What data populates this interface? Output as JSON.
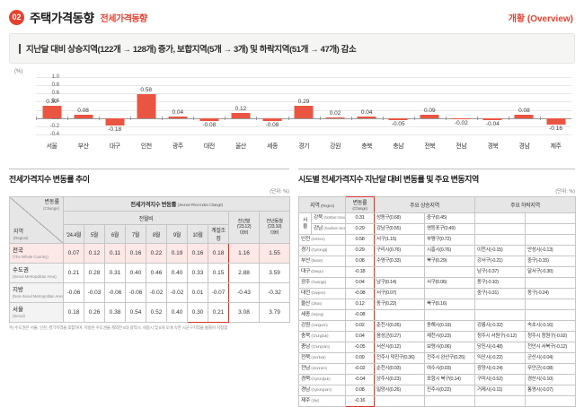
{
  "colors": {
    "accent_red": "#e8402f",
    "bar": "#ea5541",
    "highlight_row": "#fce8e6",
    "red_box": "#d0382b",
    "header_bg": "#e6e6e6"
  },
  "header": {
    "badge": "02",
    "title": "주택가격동향",
    "subtitle": "전세가격동향",
    "right_label": "개황 (Overview)"
  },
  "summary": {
    "text": "지난달 대비 상승지역(122개 → 128개) 증가, 보합지역(5개 → 3개) 및 하락지역(51개 → 47개) 감소"
  },
  "chart_data": {
    "type": "bar",
    "unit_label": "(%)",
    "categories": [
      "서울",
      "부산",
      "대구",
      "인천",
      "광주",
      "대전",
      "울산",
      "세종",
      "경기",
      "강원",
      "충북",
      "충남",
      "전북",
      "전남",
      "경북",
      "경남",
      "제주"
    ],
    "values": [
      0.3,
      0.08,
      -0.18,
      0.58,
      0.04,
      -0.08,
      0.12,
      -0.08,
      0.29,
      0.02,
      0.04,
      -0.05,
      0.09,
      -0.02,
      -0.04,
      0.08,
      -0.16
    ],
    "ylim": [
      -0.4,
      1.0
    ],
    "ytick_step": 0.2,
    "grid": true,
    "legend": "none"
  },
  "left_table": {
    "title": "전세가격지수 변동률 추이",
    "unit": "(단위: %)",
    "corner": {
      "change_kr": "변동률",
      "change_en": "(Change)",
      "region_kr": "지역",
      "region_en": "(Region)"
    },
    "group_title_kr": "전세가격지수 변동률",
    "group_title_en": "(Jeonse Price Index Change)",
    "sub_group": "전월비",
    "months": [
      "'24.4월",
      "5월",
      "6월",
      "7월",
      "8월",
      "9월",
      "10월",
      "계절조정"
    ],
    "extra_cols": [
      "전년말\n('23.12)\n대비",
      "전년동월\n('23.10)\n대비"
    ],
    "rows": [
      {
        "kr": "전국",
        "en": "(The Whole Country)",
        "highlight": true,
        "values": [
          "0.07",
          "0.12",
          "0.11",
          "0.16",
          "0.22",
          "0.19",
          "0.16",
          "0.18",
          "1.16",
          "1.55"
        ]
      },
      {
        "kr": "수도권",
        "en": "(Seoul Metropolitan Area)",
        "highlight": false,
        "values": [
          "0.21",
          "0.28",
          "0.31",
          "0.40",
          "0.46",
          "0.40",
          "0.33",
          "0.15",
          "2.88",
          "3.59"
        ]
      },
      {
        "kr": "지방",
        "en": "(Non-Seoul Metropolitan Area)",
        "highlight": false,
        "values": [
          "-0.06",
          "-0.03",
          "-0.06",
          "-0.06",
          "-0.02",
          "-0.02",
          "0.01",
          "-0.07",
          "-0.43",
          "-0.32"
        ]
      },
      {
        "kr": "서울",
        "en": "(Seoul)",
        "highlight": false,
        "values": [
          "0.18",
          "0.26",
          "0.38",
          "0.54",
          "0.52",
          "0.40",
          "0.30",
          "0.21",
          "3.08",
          "3.79"
        ]
      }
    ],
    "footnote": "주) 수도권은 서울, 인천, 경기지역을 포함하며, 지방은 수도권을 제외한 5대 광역시, 세종시 및 8개 도에 속한 시군구지역을 통틀어 지칭함"
  },
  "right_table": {
    "title": "시도별 전세가격지수 지난달 대비 변동률 및 주요 변동지역",
    "unit": "(단위: %)",
    "headers": {
      "region": "지역",
      "region_en": "(Region)",
      "change": "변동률",
      "change_en": "(Change)",
      "up": "주요 상승지역",
      "down": "주요 하락지역"
    },
    "rows": [
      {
        "group": "서울",
        "group_span": 2,
        "kr": "강북",
        "en": "(Northern Seoul)",
        "change": "0.31",
        "up": [
          "성동구(0.68)",
          "중구(0.45)"
        ],
        "down": [
          "",
          ""
        ]
      },
      {
        "kr": "강남",
        "en": "(Southern Seoul)",
        "change": "0.29",
        "up": [
          "강남구(0.55)",
          "영등포구(0.49)"
        ],
        "down": [
          "",
          ""
        ]
      },
      {
        "kr": "인천",
        "en": "(Incheon)",
        "wide": true,
        "change": "0.58",
        "up": [
          "서구(1.15)",
          "부평구(0.72)"
        ],
        "down": [
          "",
          ""
        ]
      },
      {
        "kr": "경기",
        "en": "(Gyeonggi)",
        "wide": true,
        "change": "0.29",
        "up": [
          "구리시(0.76)",
          "시흥시(0.76)"
        ],
        "down": [
          "이천시(-0.15)",
          "안성시(-0.13)"
        ]
      },
      {
        "kr": "부산",
        "en": "(Busan)",
        "wide": true,
        "change": "0.08",
        "up": [
          "수영구(0.33)",
          "북구(0.29)"
        ],
        "down": [
          "강서구(-0.21)",
          "중구(-0.15)"
        ]
      },
      {
        "kr": "대구",
        "en": "(Daegu)",
        "wide": true,
        "change": "-0.18",
        "up": [
          "",
          ""
        ],
        "down": [
          "남구(-0.37)",
          "달서구(-0.30)"
        ]
      },
      {
        "kr": "광주",
        "en": "(Gwangju)",
        "wide": true,
        "change": "0.04",
        "up": [
          "남구(0.14)",
          "서구(0.06)"
        ],
        "down": [
          "동구(-0.10)",
          ""
        ]
      },
      {
        "kr": "대전",
        "en": "(Daejeon)",
        "wide": true,
        "change": "-0.08",
        "up": [
          "서구(0.07)",
          ""
        ],
        "down": [
          "중구(-0.31)",
          "동구(-0.24)"
        ]
      },
      {
        "kr": "울산",
        "en": "(Ulsan)",
        "wide": true,
        "change": "0.12",
        "up": [
          "동구(0.22)",
          "북구(0.16)"
        ],
        "down": [
          "",
          ""
        ]
      },
      {
        "kr": "세종",
        "en": "(Sejong)",
        "wide": true,
        "change": "-0.08",
        "up": [
          "",
          ""
        ],
        "down": [
          "",
          ""
        ]
      },
      {
        "kr": "강원",
        "en": "(Gangwon)",
        "wide": true,
        "change": "0.02",
        "up": [
          "춘천시(0.26)",
          "동해시(0.19)"
        ],
        "down": [
          "강릉시(-0.32)",
          "속초시(-0.16)"
        ]
      },
      {
        "kr": "충북",
        "en": "(Chungbuk)",
        "wide": true,
        "change": "0.04",
        "up": [
          "음성군(0.27)",
          "제천시(0.23)"
        ],
        "down": [
          "청주시 서원구(-0.12)",
          "청주시 청원구(-0.02)"
        ]
      },
      {
        "kr": "충남",
        "en": "(Chungnam)",
        "wide": true,
        "change": "-0.05",
        "up": [
          "서산시(0.12)",
          "보령시(0.06)"
        ],
        "down": [
          "당진시(-0.48)",
          "천안시 서북구(-0.12)"
        ]
      },
      {
        "kr": "전북",
        "en": "(Jeonbuk)",
        "wide": true,
        "change": "0.09",
        "up": [
          "전주시 덕진구(0.36)",
          "전주시 완산구(0.25)"
        ],
        "down": [
          "익산시(-0.22)",
          "군산시(-0.04)"
        ]
      },
      {
        "kr": "전남",
        "en": "(Jeonnam)",
        "wide": true,
        "change": "-0.02",
        "up": [
          "순천시(0.03)",
          "여수시(0.03)"
        ],
        "down": [
          "광양시(-0.24)",
          "무안군(-0.08)"
        ]
      },
      {
        "kr": "경북",
        "en": "(Gyeongbuk)",
        "wide": true,
        "change": "-0.04",
        "up": [
          "상주시(0.23)",
          "포항시 북구(0.14)"
        ],
        "down": [
          "구미시(-0.52)",
          "경산시(-0.10)"
        ]
      },
      {
        "kr": "경남",
        "en": "(Gyeongnam)",
        "wide": true,
        "change": "0.08",
        "up": [
          "밀양시(0.26)",
          "진주시(0.22)"
        ],
        "down": [
          "거제시(-0.11)",
          "통영시(-0.07)"
        ]
      },
      {
        "kr": "제주",
        "en": "(Jeju)",
        "wide": true,
        "change": "-0.16",
        "up": [
          "",
          ""
        ],
        "down": [
          "",
          ""
        ]
      }
    ]
  }
}
